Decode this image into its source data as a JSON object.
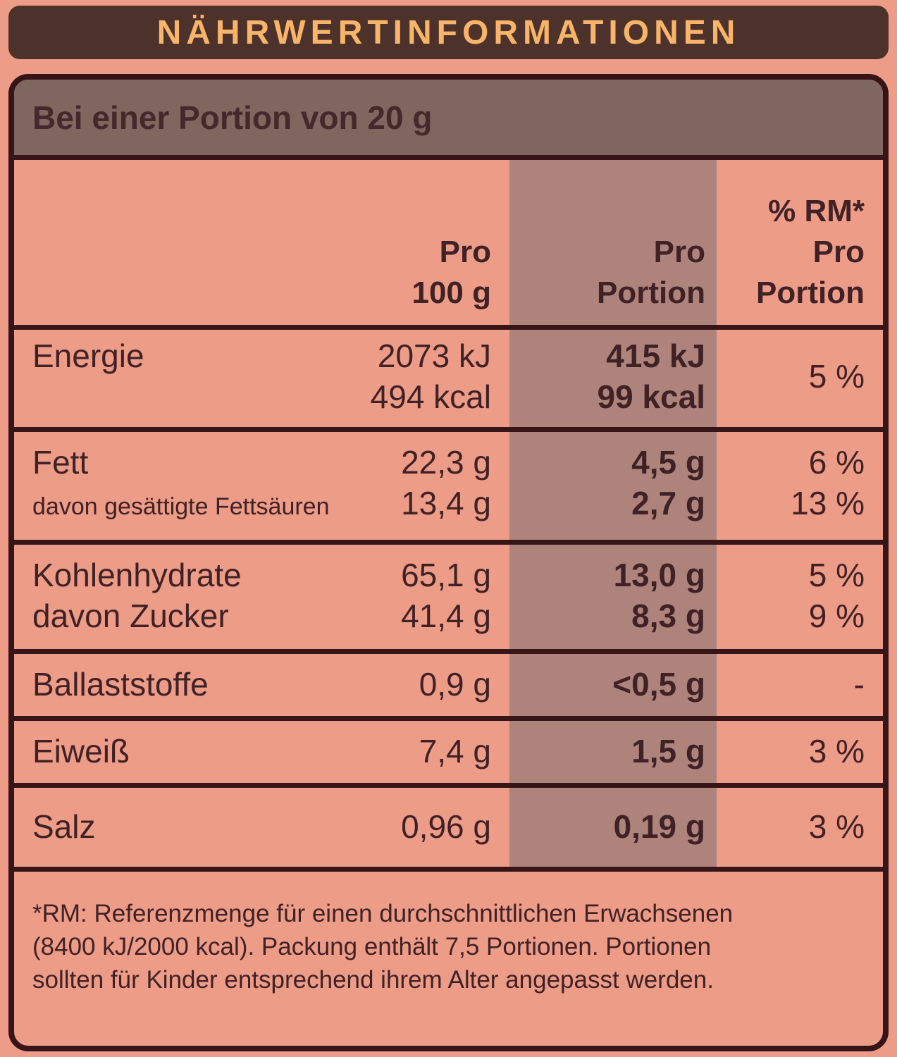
{
  "colors": {
    "background": "#ED9C88",
    "panel_dark_brown": "#4C322B",
    "title_orange": "#F8B469",
    "portion_row_bg": "#7F665F",
    "portion_column_band": "#AE837C",
    "text_ink": "#402125",
    "border_dark": "#371418"
  },
  "header": {
    "title": "NÄHRWERTINFORMATIONEN"
  },
  "table": {
    "portion_header": "Bei einer Portion von 20 g",
    "col_headers": {
      "per100": {
        "l1": "Pro",
        "l2": "100 g"
      },
      "portion": {
        "l1": "Pro",
        "l2": "Portion"
      },
      "rm": {
        "l1": "% RM*",
        "l2": "Pro",
        "l3": "Portion"
      }
    },
    "rows": {
      "energie": {
        "label": "Energie",
        "per100_kj": "2073 kJ",
        "per100_kcal": "494 kcal",
        "portion_kj": "415 kJ",
        "portion_kcal": "99 kcal",
        "rm": "5 %"
      },
      "fett": {
        "label": "Fett",
        "per100": "22,3 g",
        "portion": "4,5 g",
        "rm": "6 %"
      },
      "fett_gesaettigt": {
        "label": "davon gesättigte Fettsäuren",
        "per100": "13,4 g",
        "portion": "2,7 g",
        "rm": "13 %"
      },
      "kohlenhydrate": {
        "label": "Kohlenhydrate",
        "per100": "65,1 g",
        "portion": "13,0 g",
        "rm": "5 %"
      },
      "zucker": {
        "label": "davon Zucker",
        "per100": "41,4 g",
        "portion": "8,3 g",
        "rm": "9 %"
      },
      "ballaststoffe": {
        "label": "Ballaststoffe",
        "per100": "0,9 g",
        "portion": "<0,5 g",
        "rm": "-"
      },
      "eiweiss": {
        "label": "Eiweiß",
        "per100": "7,4 g",
        "portion": "1,5 g",
        "rm": "3 %"
      },
      "salz": {
        "label": "Salz",
        "per100": "0,96 g",
        "portion": "0,19 g",
        "rm": "3 %"
      }
    },
    "footnote": {
      "l1": "*RM: Referenzmenge für einen durchschnittlichen Erwachsenen",
      "l2": "(8400 kJ/2000 kcal). Packung enthält 7,5 Portionen. Portionen",
      "l3": "sollten für Kinder entsprechend ihrem Alter angepasst werden."
    }
  }
}
